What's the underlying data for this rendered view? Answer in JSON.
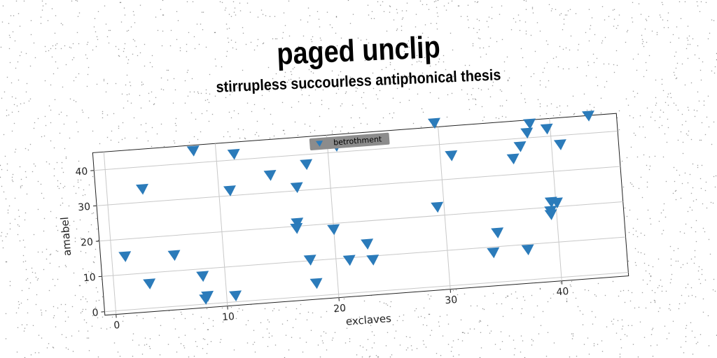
{
  "title": "paged unclip",
  "subtitle": "stirrupless succourless antiphonical thesis",
  "chart_data": {
    "type": "scatter",
    "xlabel": "exclaves",
    "ylabel": "amabel",
    "xlim": [
      -1,
      46
    ],
    "ylim": [
      -1,
      45
    ],
    "xticks": [
      0,
      10,
      20,
      30,
      40
    ],
    "yticks": [
      0,
      10,
      20,
      30,
      40
    ],
    "grid": true,
    "legend_position": "top-center",
    "series": [
      {
        "name": "betrothment",
        "marker": "triangle-down",
        "color": "#2b7bba",
        "points": [
          {
            "x": 1.2,
            "y": 15.2
          },
          {
            "x": 3.2,
            "y": 7.0
          },
          {
            "x": 3.2,
            "y": 33.8
          },
          {
            "x": 5.6,
            "y": 14.5
          },
          {
            "x": 8.0,
            "y": 8.0
          },
          {
            "x": 8.1,
            "y": 1.5
          },
          {
            "x": 8.3,
            "y": 2.3
          },
          {
            "x": 8.0,
            "y": 43.5
          },
          {
            "x": 10.8,
            "y": 1.8
          },
          {
            "x": 11.0,
            "y": 31.5
          },
          {
            "x": 11.6,
            "y": 41.7
          },
          {
            "x": 14.7,
            "y": 35.0
          },
          {
            "x": 16.8,
            "y": 21.0
          },
          {
            "x": 16.7,
            "y": 19.5
          },
          {
            "x": 17.0,
            "y": 31.0
          },
          {
            "x": 17.7,
            "y": 10.3
          },
          {
            "x": 18.1,
            "y": 3.6
          },
          {
            "x": 18.0,
            "y": 37.3
          },
          {
            "x": 20.0,
            "y": 18.4
          },
          {
            "x": 21.2,
            "y": 9.4
          },
          {
            "x": 20.8,
            "y": 41.8
          },
          {
            "x": 22.9,
            "y": 13.6
          },
          {
            "x": 23.3,
            "y": 9.0
          },
          {
            "x": 29.4,
            "y": 22.5
          },
          {
            "x": 29.7,
            "y": 46.2
          },
          {
            "x": 31.0,
            "y": 36.7
          },
          {
            "x": 34.1,
            "y": 8.5
          },
          {
            "x": 34.6,
            "y": 14.0
          },
          {
            "x": 36.5,
            "y": 34.5
          },
          {
            "x": 37.2,
            "y": 8.6
          },
          {
            "x": 37.2,
            "y": 37.8
          },
          {
            "x": 37.9,
            "y": 41.5
          },
          {
            "x": 38.2,
            "y": 44.0
          },
          {
            "x": 39.5,
            "y": 19.0
          },
          {
            "x": 39.5,
            "y": 18.0
          },
          {
            "x": 39.6,
            "y": 21.5
          },
          {
            "x": 40.1,
            "y": 21.2
          },
          {
            "x": 39.7,
            "y": 42.2
          },
          {
            "x": 40.8,
            "y": 37.5
          },
          {
            "x": 43.5,
            "y": 45.0
          }
        ]
      }
    ]
  }
}
